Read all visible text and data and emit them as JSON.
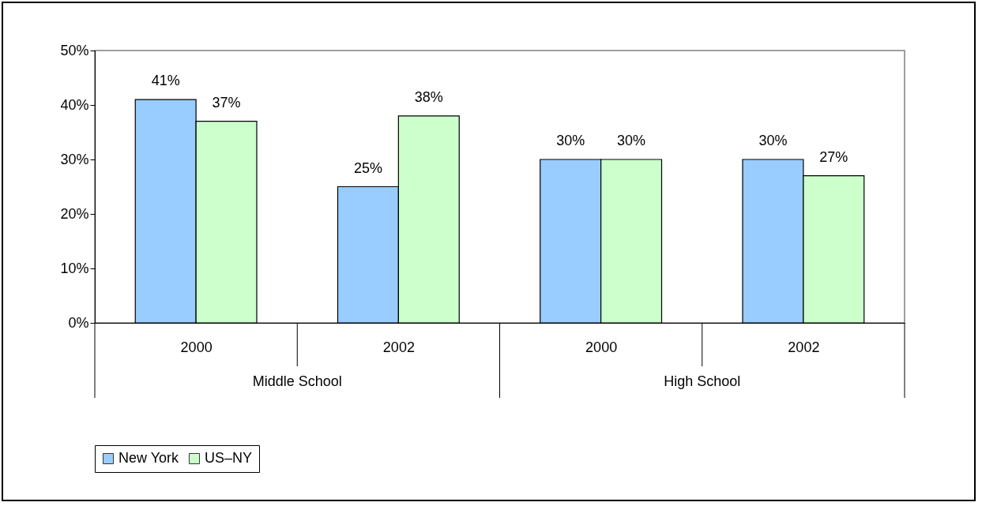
{
  "chart_data": {
    "type": "bar",
    "categories": [
      "2000",
      "2002",
      "2000",
      "2002"
    ],
    "series": [
      {
        "name": "New York",
        "color": "#99ccff",
        "values": [
          41,
          25,
          30,
          30
        ],
        "value_labels": [
          "41%",
          "25%",
          "30%",
          "30%"
        ]
      },
      {
        "name": "US–NY",
        "color": "#ccffcc",
        "values": [
          37,
          38,
          30,
          27
        ],
        "value_labels": [
          "37%",
          "38%",
          "30%",
          "27%"
        ]
      }
    ],
    "annotations": [
      "Middle School",
      "High School"
    ],
    "ylim": [
      0,
      50
    ],
    "yticks": [
      {
        "value": 0,
        "label": "0%"
      },
      {
        "value": 10,
        "label": "10%"
      },
      {
        "value": 20,
        "label": "20%"
      },
      {
        "value": 30,
        "label": "30%"
      },
      {
        "value": 40,
        "label": "40%"
      },
      {
        "value": 50,
        "label": "50%"
      }
    ],
    "grid": false,
    "legend": "bottom"
  }
}
